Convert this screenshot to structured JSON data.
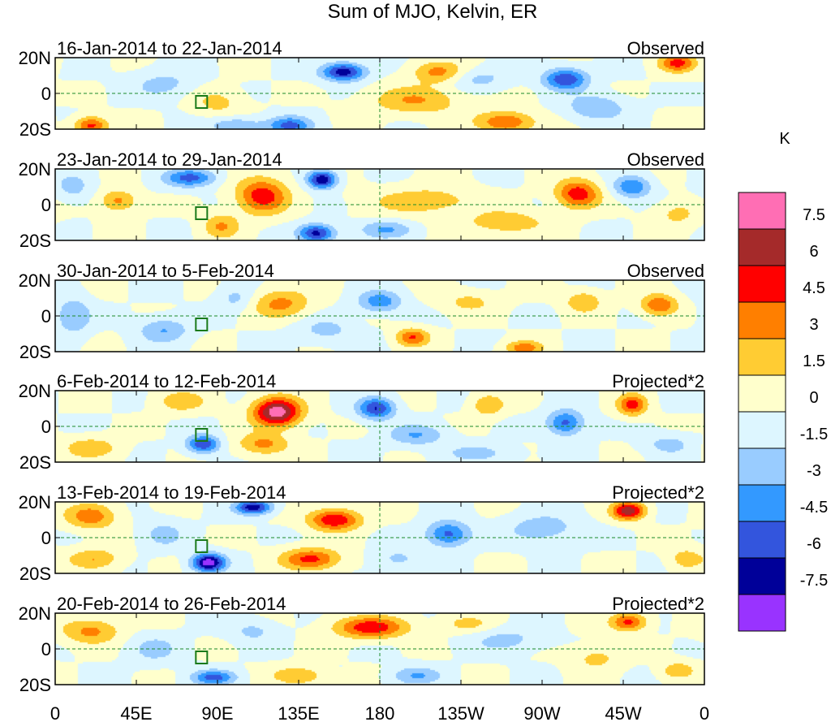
{
  "chart_data": {
    "type": "heatmap",
    "title": "Sum of MJO, Kelvin, ER",
    "x_axis": {
      "label": "",
      "range_deg_east": [
        0,
        360
      ],
      "ticks": [
        {
          "lon": 0,
          "label": "0"
        },
        {
          "lon": 45,
          "label": "45E"
        },
        {
          "lon": 90,
          "label": "90E"
        },
        {
          "lon": 135,
          "label": "135E"
        },
        {
          "lon": 180,
          "label": "180"
        },
        {
          "lon": 225,
          "label": "135W"
        },
        {
          "lon": 270,
          "label": "90W"
        },
        {
          "lon": 315,
          "label": "45W"
        },
        {
          "lon": 360,
          "label": "0"
        }
      ]
    },
    "y_axis": {
      "label": "",
      "range_deg": [
        -20,
        20
      ],
      "ticks": [
        {
          "lat": 20,
          "label": "20N"
        },
        {
          "lat": 0,
          "label": "0"
        },
        {
          "lat": -20,
          "label": "20S"
        }
      ]
    },
    "colorbar": {
      "units": "K",
      "levels": [
        "7.5",
        "6",
        "4.5",
        "3",
        "1.5",
        "0",
        "-1.5",
        "-3",
        "-4.5",
        "-6",
        "-7.5"
      ],
      "colors": [
        "#ff6eb4",
        "#a52a2a",
        "#ff0000",
        "#ff7f00",
        "#ffcc33",
        "#ffffcc",
        "#ddf6ff",
        "#99ccff",
        "#3399ff",
        "#3355dd",
        "#000099",
        "#9933ff"
      ]
    },
    "panels": [
      {
        "date_range": "16-Jan-2014 to 22-Jan-2014",
        "kind": "Observed",
        "anomalies": [
          {
            "lon": 160,
            "lat": 12,
            "value": -7,
            "rlon": 12,
            "rlat": 5
          },
          {
            "lon": 212,
            "lat": 12,
            "value": 3.5,
            "rlon": 14,
            "rlat": 6
          },
          {
            "lon": 200,
            "lat": -4,
            "value": 3,
            "rlon": 25,
            "rlat": 8
          },
          {
            "lon": 20,
            "lat": -18,
            "value": 5,
            "rlon": 9,
            "rlat": 5
          },
          {
            "lon": 100,
            "lat": -18,
            "value": -3,
            "rlon": 15,
            "rlat": 5
          },
          {
            "lon": 130,
            "lat": -18,
            "value": -5,
            "rlon": 12,
            "rlat": 5
          },
          {
            "lon": 250,
            "lat": -16,
            "value": 4.5,
            "rlon": 16,
            "rlat": 6
          },
          {
            "lon": 283,
            "lat": 8,
            "value": -6,
            "rlon": 12,
            "rlat": 6
          },
          {
            "lon": 345,
            "lat": 17,
            "value": 5,
            "rlon": 10,
            "rlat": 5
          },
          {
            "lon": 300,
            "lat": -8,
            "value": -3,
            "rlon": 16,
            "rlat": 7
          },
          {
            "lon": 60,
            "lat": 5,
            "value": -2,
            "rlon": 18,
            "rlat": 8
          },
          {
            "lon": 90,
            "lat": -5,
            "value": 2,
            "rlon": 14,
            "rlat": 8
          },
          {
            "lon": 235,
            "lat": 8,
            "value": -2,
            "rlon": 16,
            "rlat": 6
          }
        ]
      },
      {
        "date_range": "23-Jan-2014 to 29-Jan-2014",
        "kind": "Observed",
        "anomalies": [
          {
            "lon": 115,
            "lat": 5,
            "value": 5.5,
            "rlon": 14,
            "rlat": 10
          },
          {
            "lon": 92,
            "lat": -12,
            "value": 3,
            "rlon": 10,
            "rlat": 7
          },
          {
            "lon": 148,
            "lat": 14,
            "value": -7.5,
            "rlon": 8,
            "rlat": 5
          },
          {
            "lon": 75,
            "lat": 15,
            "value": -5,
            "rlon": 14,
            "rlat": 5
          },
          {
            "lon": 145,
            "lat": -16,
            "value": -6.5,
            "rlon": 10,
            "rlat": 5
          },
          {
            "lon": 35,
            "lat": 2,
            "value": 3.5,
            "rlon": 10,
            "rlat": 6
          },
          {
            "lon": 290,
            "lat": 6,
            "value": 5.5,
            "rlon": 12,
            "rlat": 8
          },
          {
            "lon": 205,
            "lat": 2,
            "value": 2.5,
            "rlon": 30,
            "rlat": 8
          },
          {
            "lon": 250,
            "lat": -10,
            "value": 3,
            "rlon": 20,
            "rlat": 6
          },
          {
            "lon": 183,
            "lat": -14,
            "value": -3,
            "rlon": 15,
            "rlat": 5
          },
          {
            "lon": 320,
            "lat": 10,
            "value": -4.5,
            "rlon": 10,
            "rlat": 6
          },
          {
            "lon": 10,
            "lat": 10,
            "value": -2,
            "rlon": 10,
            "rlat": 8
          },
          {
            "lon": 345,
            "lat": -5,
            "value": 2,
            "rlon": 12,
            "rlat": 7
          }
        ]
      },
      {
        "date_range": "30-Jan-2014 to 5-Feb-2014",
        "kind": "Observed",
        "anomalies": [
          {
            "lon": 125,
            "lat": 7,
            "value": 3.5,
            "rlon": 16,
            "rlat": 8
          },
          {
            "lon": 198,
            "lat": -12,
            "value": 4.5,
            "rlon": 9,
            "rlat": 5
          },
          {
            "lon": 335,
            "lat": 6,
            "value": 4.5,
            "rlon": 10,
            "rlat": 6
          },
          {
            "lon": 293,
            "lat": 8,
            "value": 3,
            "rlon": 10,
            "rlat": 6
          },
          {
            "lon": 180,
            "lat": 8,
            "value": -4,
            "rlon": 12,
            "rlat": 6
          },
          {
            "lon": 10,
            "lat": 0,
            "value": -3,
            "rlon": 10,
            "rlat": 10
          },
          {
            "lon": 60,
            "lat": -8,
            "value": -3,
            "rlon": 14,
            "rlat": 7
          },
          {
            "lon": 260,
            "lat": -18,
            "value": 4,
            "rlon": 10,
            "rlat": 4
          },
          {
            "lon": 150,
            "lat": -8,
            "value": -2,
            "rlon": 16,
            "rlat": 7
          },
          {
            "lon": 100,
            "lat": 10,
            "value": -2,
            "rlon": 10,
            "rlat": 7
          },
          {
            "lon": 230,
            "lat": 8,
            "value": 2,
            "rlon": 15,
            "rlat": 6
          }
        ]
      },
      {
        "date_range": "6-Feb-2014 to 12-Feb-2014",
        "kind": "Projected*2",
        "anomalies": [
          {
            "lon": 123,
            "lat": 8,
            "value": 8.5,
            "rlon": 13,
            "rlat": 8
          },
          {
            "lon": 115,
            "lat": -10,
            "value": 3.5,
            "rlon": 14,
            "rlat": 6
          },
          {
            "lon": 82,
            "lat": -10,
            "value": -6,
            "rlon": 9,
            "rlat": 5
          },
          {
            "lon": 178,
            "lat": 10,
            "value": -6,
            "rlon": 10,
            "rlat": 6
          },
          {
            "lon": 200,
            "lat": -5,
            "value": -3,
            "rlon": 16,
            "rlat": 6
          },
          {
            "lon": 320,
            "lat": 12,
            "value": 5,
            "rlon": 8,
            "rlat": 6
          },
          {
            "lon": 283,
            "lat": 2,
            "value": -5,
            "rlon": 10,
            "rlat": 7
          },
          {
            "lon": 240,
            "lat": 12,
            "value": 3,
            "rlon": 9,
            "rlat": 6
          },
          {
            "lon": 70,
            "lat": 14,
            "value": 2.5,
            "rlon": 14,
            "rlat": 6
          },
          {
            "lon": 20,
            "lat": -12,
            "value": 2.5,
            "rlon": 16,
            "rlat": 6
          },
          {
            "lon": 340,
            "lat": -10,
            "value": -2,
            "rlon": 14,
            "rlat": 6
          },
          {
            "lon": 235,
            "lat": -15,
            "value": -2,
            "rlon": 20,
            "rlat": 5
          }
        ]
      },
      {
        "date_range": "13-Feb-2014 to 19-Feb-2014",
        "kind": "Projected*2",
        "anomalies": [
          {
            "lon": 155,
            "lat": 10,
            "value": 6,
            "rlon": 14,
            "rlat": 6
          },
          {
            "lon": 142,
            "lat": -12,
            "value": 5,
            "rlon": 16,
            "rlat": 6
          },
          {
            "lon": 85,
            "lat": -14,
            "value": -8.5,
            "rlon": 9,
            "rlat": 5
          },
          {
            "lon": 110,
            "lat": 17,
            "value": -7,
            "rlon": 10,
            "rlat": 4
          },
          {
            "lon": 318,
            "lat": 15,
            "value": 7,
            "rlon": 9,
            "rlat": 5
          },
          {
            "lon": 218,
            "lat": 2,
            "value": -5,
            "rlon": 12,
            "rlat": 7
          },
          {
            "lon": 20,
            "lat": 12,
            "value": 4,
            "rlon": 14,
            "rlat": 7
          },
          {
            "lon": 22,
            "lat": -12,
            "value": 3,
            "rlon": 14,
            "rlat": 6
          },
          {
            "lon": 270,
            "lat": 5,
            "value": -2.5,
            "rlon": 20,
            "rlat": 8
          },
          {
            "lon": 350,
            "lat": -12,
            "value": 2.5,
            "rlon": 10,
            "rlat": 6
          },
          {
            "lon": 60,
            "lat": 2,
            "value": -2,
            "rlon": 12,
            "rlat": 8
          },
          {
            "lon": 190,
            "lat": -12,
            "value": -2,
            "rlon": 12,
            "rlat": 6
          }
        ]
      },
      {
        "date_range": "20-Feb-2014 to 26-Feb-2014",
        "kind": "Projected*2",
        "anomalies": [
          {
            "lon": 175,
            "lat": 12,
            "value": 5.5,
            "rlon": 20,
            "rlat": 6
          },
          {
            "lon": 318,
            "lat": 15,
            "value": 5,
            "rlon": 10,
            "rlat": 5
          },
          {
            "lon": 20,
            "lat": 10,
            "value": 3.5,
            "rlon": 16,
            "rlat": 7
          },
          {
            "lon": 88,
            "lat": -16,
            "value": -5,
            "rlon": 12,
            "rlat": 4
          },
          {
            "lon": 135,
            "lat": -15,
            "value": 3,
            "rlon": 14,
            "rlat": 5
          },
          {
            "lon": 250,
            "lat": 5,
            "value": -2,
            "rlon": 20,
            "rlat": 7
          },
          {
            "lon": 55,
            "lat": 0,
            "value": -2,
            "rlon": 14,
            "rlat": 8
          },
          {
            "lon": 200,
            "lat": -15,
            "value": -3,
            "rlon": 14,
            "rlat": 5
          },
          {
            "lon": 300,
            "lat": -5,
            "value": 2,
            "rlon": 14,
            "rlat": 7
          },
          {
            "lon": 345,
            "lat": -12,
            "value": 2.5,
            "rlon": 10,
            "rlat": 5
          },
          {
            "lon": 110,
            "lat": 10,
            "value": -2,
            "rlon": 12,
            "rlat": 6
          },
          {
            "lon": 228,
            "lat": 14,
            "value": 2,
            "rlon": 14,
            "rlat": 5
          }
        ]
      }
    ]
  }
}
